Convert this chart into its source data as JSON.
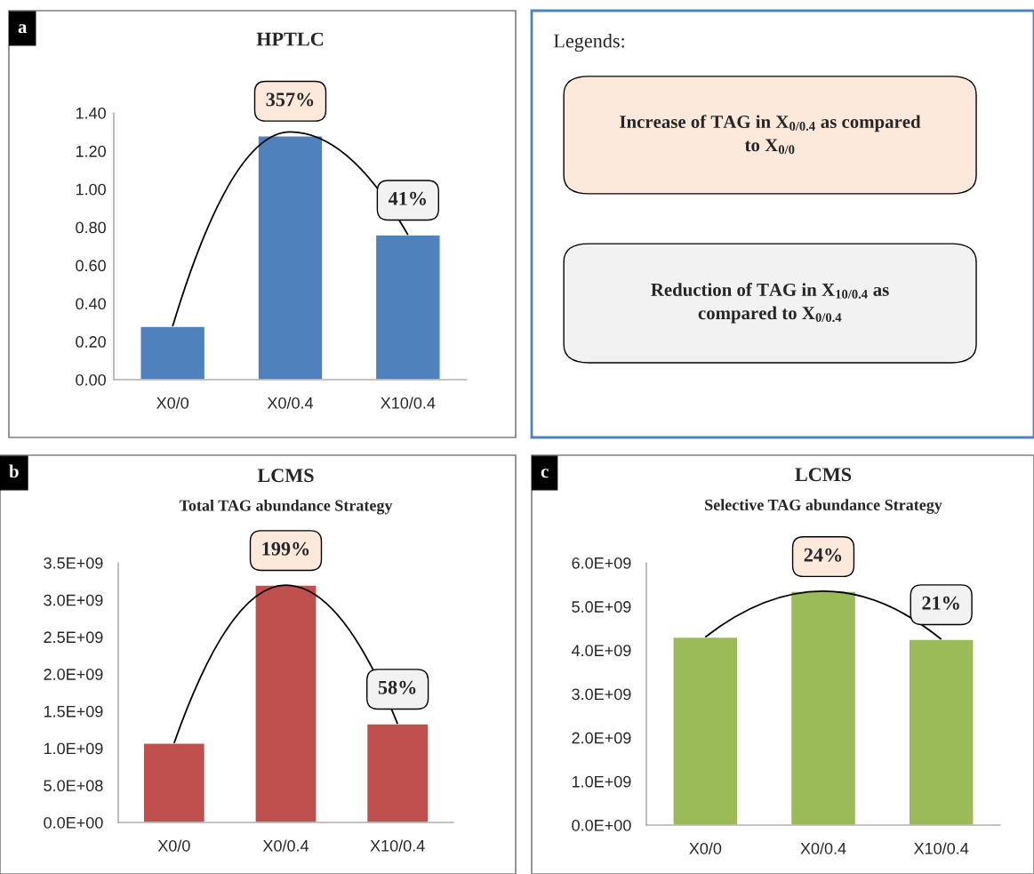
{
  "chart_data": [
    {
      "type": "bar",
      "title": "HPTLC",
      "categories": [
        "X0/0",
        "X0/0.4",
        "X10/0.4"
      ],
      "series": [
        {
          "type": "bar",
          "color": "#4f81bd",
          "values": [
            0.28,
            1.28,
            0.76
          ]
        },
        {
          "type": "line",
          "color": "#000000",
          "values": [
            0.28,
            1.3,
            0.76
          ],
          "marker": "none",
          "line_style": "solid"
        }
      ],
      "ylim": [
        0,
        1.4
      ],
      "yticks": [
        {
          "value": 0,
          "label": "0.00"
        },
        {
          "value": 0.2,
          "label": "0.20"
        },
        {
          "value": 0.4,
          "label": "0.40"
        },
        {
          "value": 0.6,
          "label": "0.60"
        },
        {
          "value": 0.8,
          "label": "0.80"
        },
        {
          "value": 1.0,
          "label": "1.00"
        },
        {
          "value": 1.2,
          "label": "1.20"
        },
        {
          "value": 1.4,
          "label": "1.40"
        }
      ],
      "grid": false,
      "legend": false,
      "annotations": [
        "a",
        {
          "text": "357%",
          "x": "X0/0.4",
          "y": 1.28
        },
        {
          "text": "41%",
          "x": "X10/0.4",
          "y": 0.76
        }
      ]
    },
    {
      "type": "other",
      "title": "Legends:",
      "annotations": [
        "Increase of TAG in X$_{0/0.4}$ as compared\nto X$_{0/0}$",
        "Reduction of TAG in X$_{10/0.4}$ as\ncompared to X$_{0/0.4}$"
      ]
    },
    {
      "type": "bar",
      "title": "LCMS",
      "subtitle": "Total TAG abundance Strategy",
      "categories": [
        "X0/0",
        "X0/0.4",
        "X10/0.4"
      ],
      "series": [
        {
          "type": "bar",
          "color": "#c0504d",
          "values": [
            1070000000,
            3200000000,
            1330000000
          ]
        },
        {
          "type": "line",
          "color": "#000000",
          "values": [
            1070000000,
            3200000000,
            1330000000
          ],
          "marker": "none",
          "line_style": "solid"
        }
      ],
      "ylim": [
        0,
        3500000000
      ],
      "yticks": [
        {
          "value": 0,
          "label": "0.0E+00"
        },
        {
          "value": 500000000,
          "label": "5.0E+08"
        },
        {
          "value": 1000000000,
          "label": "1.0E+09"
        },
        {
          "value": 1500000000,
          "label": "1.5E+09"
        },
        {
          "value": 2000000000,
          "label": "2.0E+09"
        },
        {
          "value": 2500000000,
          "label": "2.5E+09"
        },
        {
          "value": 3000000000,
          "label": "3.0E+09"
        },
        {
          "value": 3500000000,
          "label": "3.5E+09"
        }
      ],
      "grid": false,
      "legend": false,
      "annotations": [
        "b",
        {
          "text": "199%",
          "x": "X0/0.4",
          "y": 3200000000
        },
        {
          "text": "58%",
          "x": "X10/0.4",
          "y": 1330000000
        }
      ]
    },
    {
      "type": "bar",
      "title": "LCMS",
      "subtitle": "Selective TAG abundance Strategy",
      "categories": [
        "X0/0",
        "X0/0.4",
        "X10/0.4"
      ],
      "series": [
        {
          "type": "bar",
          "color": "#9bbb59",
          "values": [
            4300000000,
            5350000000,
            4250000000
          ]
        },
        {
          "type": "line",
          "color": "#000000",
          "values": [
            4300000000,
            5350000000,
            4250000000
          ],
          "marker": "none",
          "line_style": "solid"
        }
      ],
      "ylim": [
        0,
        6000000000
      ],
      "yticks": [
        {
          "value": 0,
          "label": "0.0E+00"
        },
        {
          "value": 1000000000,
          "label": "1.0E+09"
        },
        {
          "value": 2000000000,
          "label": "2.0E+09"
        },
        {
          "value": 3000000000,
          "label": "3.0E+09"
        },
        {
          "value": 4000000000,
          "label": "4.0E+09"
        },
        {
          "value": 5000000000,
          "label": "5.0E+09"
        },
        {
          "value": 6000000000,
          "label": "6.0E+09"
        }
      ],
      "grid": false,
      "legend": false,
      "annotations": [
        "c",
        {
          "text": "24%",
          "x": "X0/0.4",
          "y": 5350000000
        },
        {
          "text": "21%",
          "x": "X10/0.4",
          "y": 4250000000
        }
      ]
    }
  ]
}
